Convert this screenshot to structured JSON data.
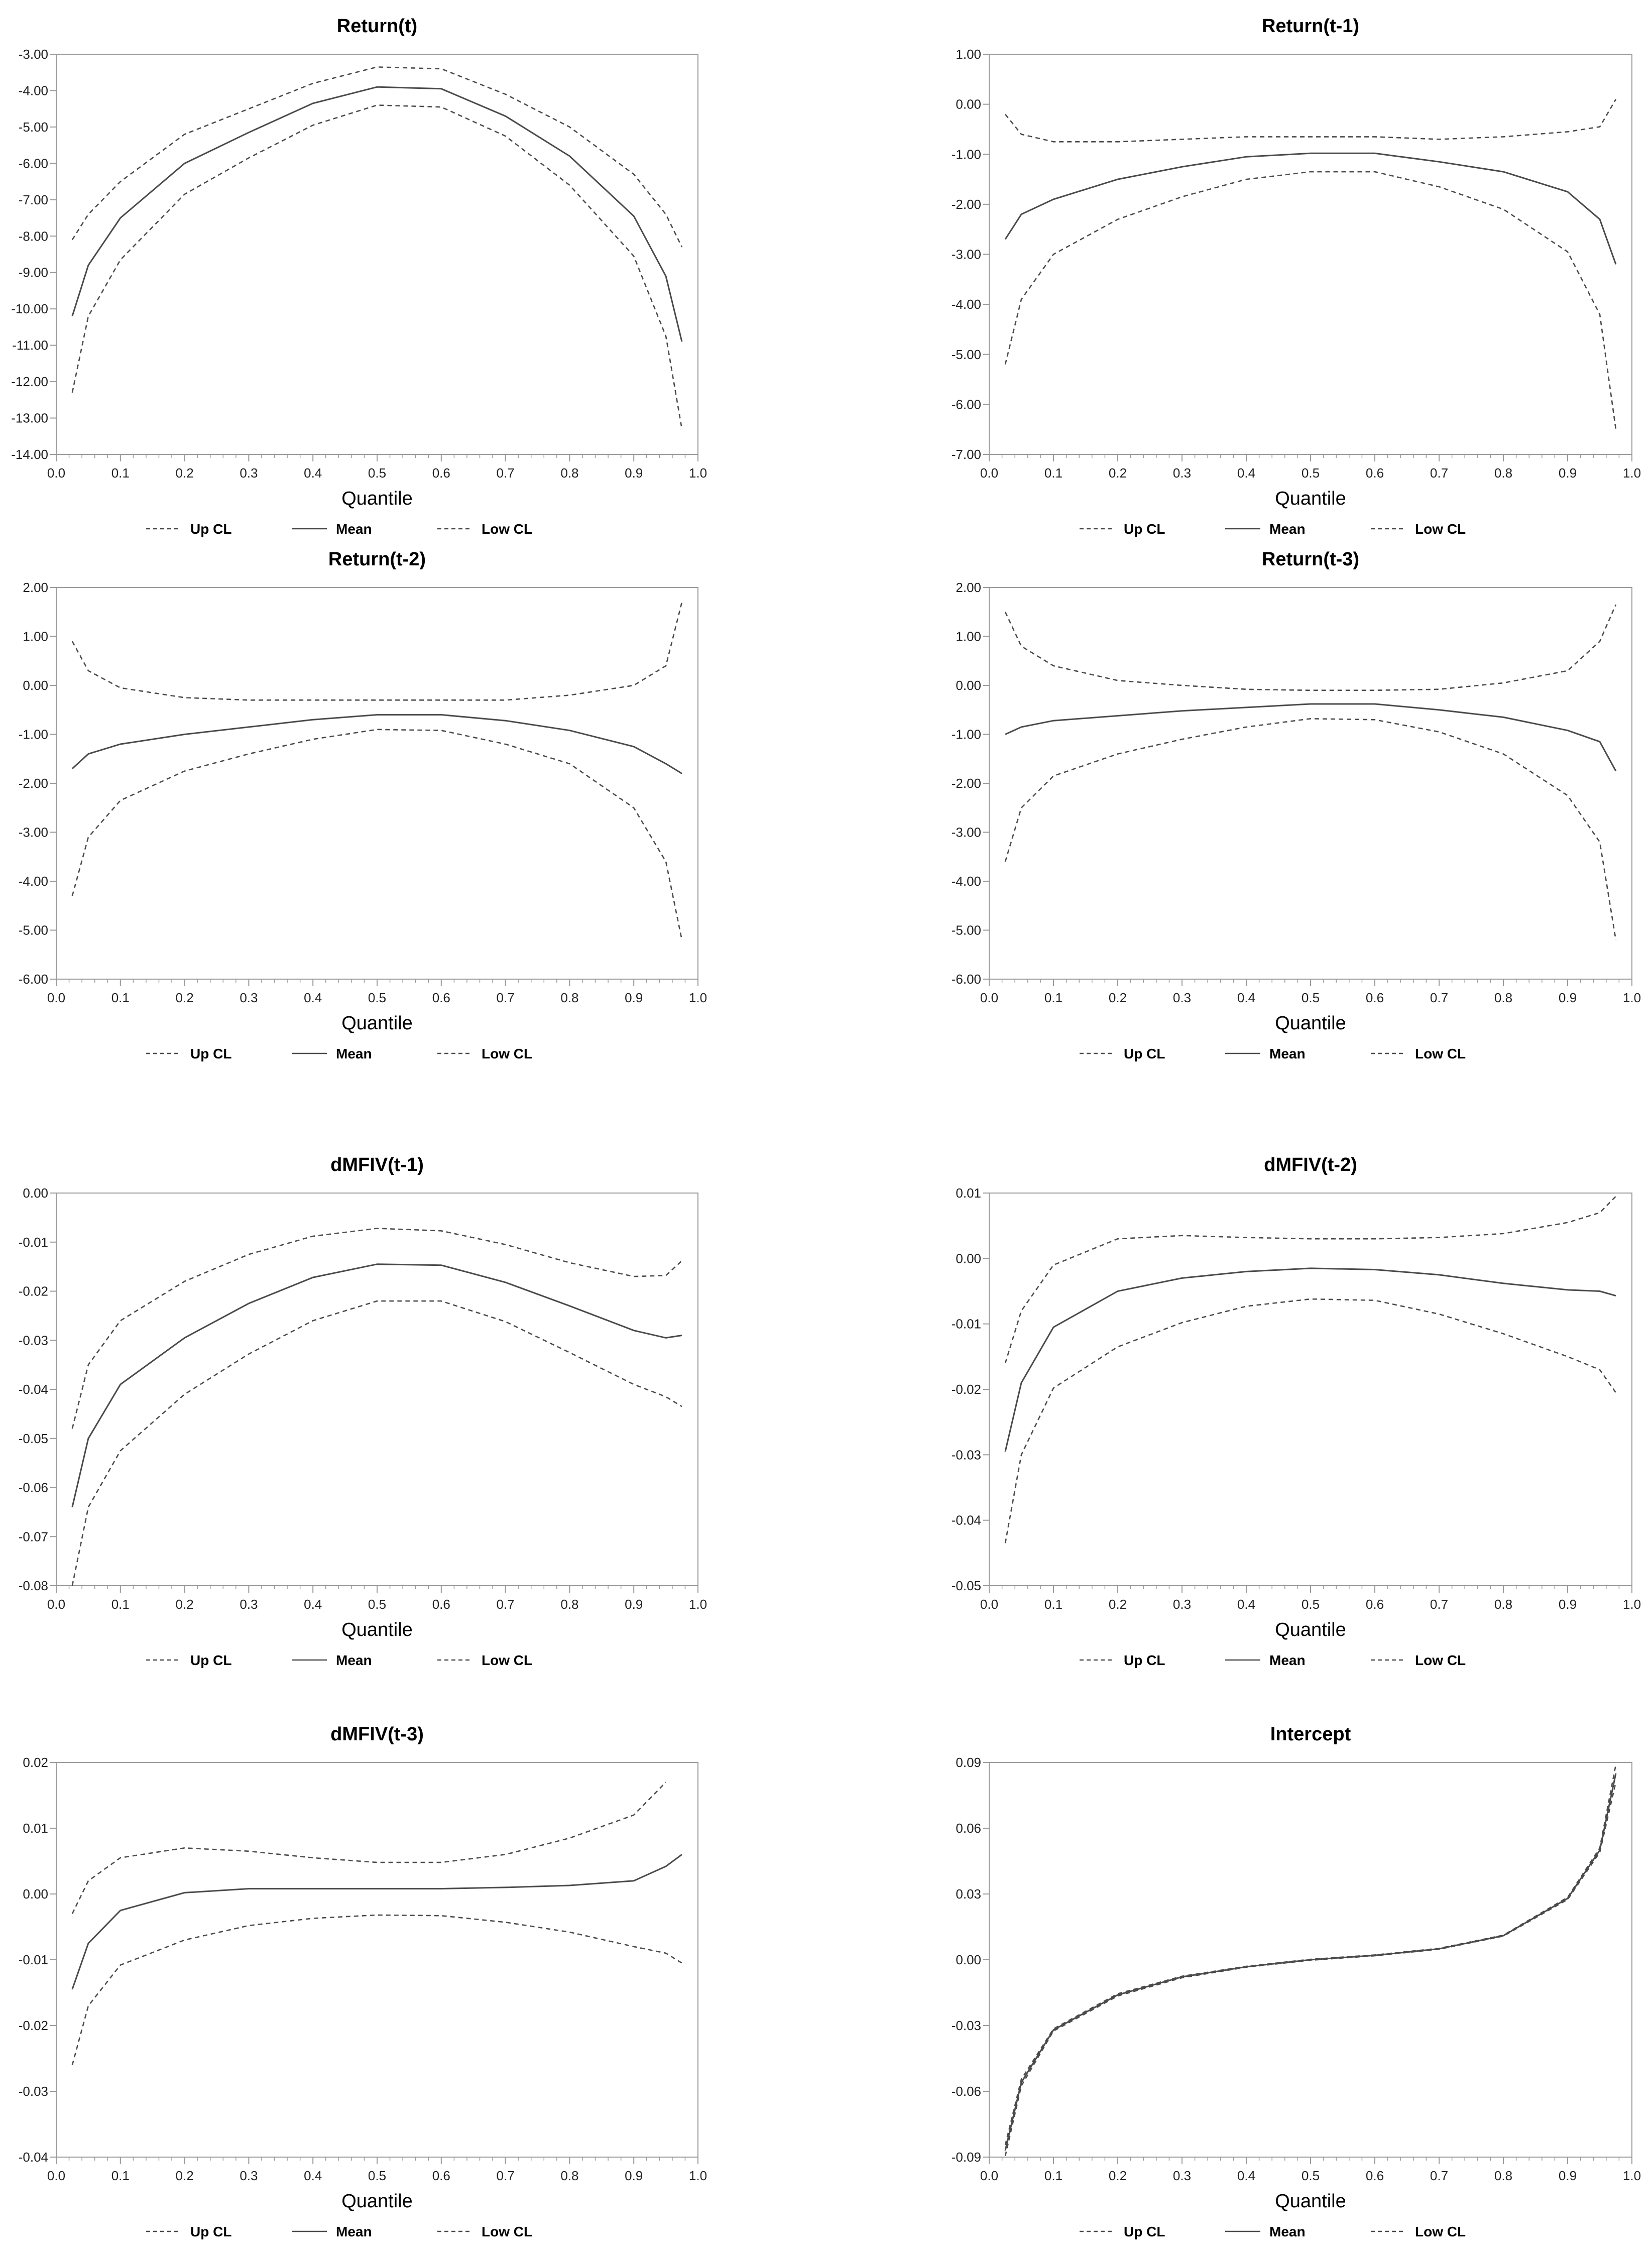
{
  "colors": {
    "line": "#4a4a4a",
    "axis": "#9a9a9a",
    "text": "#000000"
  },
  "legend": [
    "Up CL",
    "Mean",
    "Low CL"
  ],
  "chart_data": [
    {
      "type": "line",
      "title": "Return(t)",
      "xlabel": "Quantile",
      "ylabel": "",
      "xlim": [
        0,
        1
      ],
      "ylim": [
        -14,
        -3
      ],
      "xticks": [
        "0.0",
        "0.1",
        "0.2",
        "0.3",
        "0.4",
        "0.5",
        "0.6",
        "0.7",
        "0.8",
        "0.9",
        "1.0"
      ],
      "yticks": [
        "-3.00",
        "-4.00",
        "-5.00",
        "-6.00",
        "-7.00",
        "-8.00",
        "-9.00",
        "-10.00",
        "-11.00",
        "-12.00",
        "-13.00",
        "-14.00"
      ],
      "x": [
        0.025,
        0.05,
        0.1,
        0.2,
        0.3,
        0.4,
        0.5,
        0.6,
        0.7,
        0.8,
        0.9,
        0.95,
        0.975
      ],
      "series": [
        {
          "name": "Up CL",
          "style": "dashed",
          "values": [
            -8.1,
            -7.4,
            -6.5,
            -5.2,
            -4.5,
            -3.8,
            -3.35,
            -3.4,
            -4.1,
            -5.0,
            -6.3,
            -7.4,
            -8.3
          ]
        },
        {
          "name": "Mean",
          "style": "solid",
          "values": [
            -10.2,
            -8.8,
            -7.5,
            -6.0,
            -5.15,
            -4.35,
            -3.9,
            -3.95,
            -4.7,
            -5.8,
            -7.45,
            -9.1,
            -10.9
          ]
        },
        {
          "name": "Low CL",
          "style": "dashed",
          "values": [
            -12.3,
            -10.2,
            -8.65,
            -6.85,
            -5.85,
            -4.95,
            -4.4,
            -4.45,
            -5.25,
            -6.6,
            -8.55,
            -10.75,
            -13.3
          ]
        }
      ]
    },
    {
      "type": "line",
      "title": "Return(t-1)",
      "xlabel": "Quantile",
      "ylabel": "",
      "xlim": [
        0,
        1
      ],
      "ylim": [
        -7,
        1
      ],
      "xticks": [
        "0.0",
        "0.1",
        "0.2",
        "0.3",
        "0.4",
        "0.5",
        "0.6",
        "0.7",
        "0.8",
        "0.9",
        "1.0"
      ],
      "yticks": [
        "1.00",
        "0.00",
        "-1.00",
        "-2.00",
        "-3.00",
        "-4.00",
        "-5.00",
        "-6.00",
        "-7.00"
      ],
      "x": [
        0.025,
        0.05,
        0.1,
        0.2,
        0.3,
        0.4,
        0.5,
        0.6,
        0.7,
        0.8,
        0.9,
        0.95,
        0.975
      ],
      "series": [
        {
          "name": "Up CL",
          "style": "dashed",
          "values": [
            -0.2,
            -0.6,
            -0.75,
            -0.75,
            -0.7,
            -0.65,
            -0.65,
            -0.65,
            -0.7,
            -0.65,
            -0.55,
            -0.45,
            0.1
          ]
        },
        {
          "name": "Mean",
          "style": "solid",
          "values": [
            -2.7,
            -2.2,
            -1.9,
            -1.5,
            -1.25,
            -1.05,
            -0.98,
            -0.98,
            -1.15,
            -1.35,
            -1.75,
            -2.3,
            -3.2
          ]
        },
        {
          "name": "Low CL",
          "style": "dashed",
          "values": [
            -5.2,
            -3.9,
            -3.0,
            -2.3,
            -1.85,
            -1.5,
            -1.35,
            -1.35,
            -1.65,
            -2.1,
            -2.95,
            -4.2,
            -6.5
          ]
        }
      ]
    },
    {
      "type": "line",
      "title": "Return(t-2)",
      "xlabel": "Quantile",
      "ylabel": "",
      "xlim": [
        0,
        1
      ],
      "ylim": [
        -6,
        2
      ],
      "xticks": [
        "0.0",
        "0.1",
        "0.2",
        "0.3",
        "0.4",
        "0.5",
        "0.6",
        "0.7",
        "0.8",
        "0.9",
        "1.0"
      ],
      "yticks": [
        "2.00",
        "1.00",
        "0.00",
        "-1.00",
        "-2.00",
        "-3.00",
        "-4.00",
        "-5.00",
        "-6.00"
      ],
      "x": [
        0.025,
        0.05,
        0.1,
        0.2,
        0.3,
        0.4,
        0.5,
        0.6,
        0.7,
        0.8,
        0.9,
        0.95,
        0.975
      ],
      "series": [
        {
          "name": "Up CL",
          "style": "dashed",
          "values": [
            0.9,
            0.3,
            -0.05,
            -0.25,
            -0.3,
            -0.3,
            -0.3,
            -0.3,
            -0.3,
            -0.2,
            0.0,
            0.4,
            1.7
          ]
        },
        {
          "name": "Mean",
          "style": "solid",
          "values": [
            -1.7,
            -1.4,
            -1.2,
            -1.0,
            -0.85,
            -0.7,
            -0.6,
            -0.6,
            -0.72,
            -0.92,
            -1.25,
            -1.6,
            -1.8
          ]
        },
        {
          "name": "Low CL",
          "style": "dashed",
          "values": [
            -4.3,
            -3.1,
            -2.35,
            -1.75,
            -1.4,
            -1.1,
            -0.9,
            -0.92,
            -1.2,
            -1.6,
            -2.5,
            -3.6,
            -5.2
          ]
        }
      ]
    },
    {
      "type": "line",
      "title": "Return(t-3)",
      "xlabel": "Quantile",
      "ylabel": "",
      "xlim": [
        0,
        1
      ],
      "ylim": [
        -6,
        2
      ],
      "xticks": [
        "0.0",
        "0.1",
        "0.2",
        "0.3",
        "0.4",
        "0.5",
        "0.6",
        "0.7",
        "0.8",
        "0.9",
        "1.0"
      ],
      "yticks": [
        "2.00",
        "1.00",
        "0.00",
        "-1.00",
        "-2.00",
        "-3.00",
        "-4.00",
        "-5.00",
        "-6.00"
      ],
      "x": [
        0.025,
        0.05,
        0.1,
        0.2,
        0.3,
        0.4,
        0.5,
        0.6,
        0.7,
        0.8,
        0.9,
        0.95,
        0.975
      ],
      "series": [
        {
          "name": "Up CL",
          "style": "dashed",
          "values": [
            1.5,
            0.8,
            0.4,
            0.1,
            0.0,
            -0.08,
            -0.1,
            -0.1,
            -0.08,
            0.05,
            0.3,
            0.9,
            1.65
          ]
        },
        {
          "name": "Mean",
          "style": "solid",
          "values": [
            -1.0,
            -0.85,
            -0.72,
            -0.62,
            -0.52,
            -0.45,
            -0.38,
            -0.38,
            -0.5,
            -0.65,
            -0.92,
            -1.15,
            -1.75
          ]
        },
        {
          "name": "Low CL",
          "style": "dashed",
          "values": [
            -3.6,
            -2.5,
            -1.85,
            -1.4,
            -1.1,
            -0.85,
            -0.68,
            -0.7,
            -0.95,
            -1.4,
            -2.25,
            -3.2,
            -5.2
          ]
        }
      ]
    },
    {
      "type": "line",
      "title": "dMFIV(t-1)",
      "xlabel": "Quantile",
      "ylabel": "",
      "xlim": [
        0,
        1
      ],
      "ylim": [
        -0.08,
        0
      ],
      "xticks": [
        "0.0",
        "0.1",
        "0.2",
        "0.3",
        "0.4",
        "0.5",
        "0.6",
        "0.7",
        "0.8",
        "0.9",
        "1.0"
      ],
      "yticks": [
        "0.00",
        "-0.01",
        "-0.02",
        "-0.03",
        "-0.04",
        "-0.05",
        "-0.06",
        "-0.07",
        "-0.08"
      ],
      "x": [
        0.025,
        0.05,
        0.1,
        0.2,
        0.3,
        0.4,
        0.5,
        0.6,
        0.7,
        0.8,
        0.9,
        0.95,
        0.975
      ],
      "series": [
        {
          "name": "Up CL",
          "style": "dashed",
          "values": [
            -0.048,
            -0.035,
            -0.026,
            -0.018,
            -0.0125,
            -0.0088,
            -0.0072,
            -0.0077,
            -0.0105,
            -0.0142,
            -0.017,
            -0.0168,
            -0.0138
          ]
        },
        {
          "name": "Mean",
          "style": "solid",
          "values": [
            -0.064,
            -0.05,
            -0.039,
            -0.0295,
            -0.0225,
            -0.0172,
            -0.0145,
            -0.0147,
            -0.0182,
            -0.023,
            -0.028,
            -0.0295,
            -0.029
          ]
        },
        {
          "name": "Low CL",
          "style": "dashed",
          "values": [
            -0.08,
            -0.064,
            -0.0525,
            -0.041,
            -0.0328,
            -0.026,
            -0.022,
            -0.022,
            -0.0262,
            -0.0325,
            -0.039,
            -0.0415,
            -0.0435
          ]
        }
      ]
    },
    {
      "type": "line",
      "title": "dMFIV(t-2)",
      "xlabel": "Quantile",
      "ylabel": "",
      "xlim": [
        0,
        1
      ],
      "ylim": [
        -0.05,
        0.01
      ],
      "xticks": [
        "0.0",
        "0.1",
        "0.2",
        "0.3",
        "0.4",
        "0.5",
        "0.6",
        "0.7",
        "0.8",
        "0.9",
        "1.0"
      ],
      "yticks": [
        "0.01",
        "0.00",
        "-0.01",
        "-0.02",
        "-0.03",
        "-0.04",
        "-0.05"
      ],
      "x": [
        0.025,
        0.05,
        0.1,
        0.2,
        0.3,
        0.4,
        0.5,
        0.6,
        0.7,
        0.8,
        0.9,
        0.95,
        0.975
      ],
      "series": [
        {
          "name": "Up CL",
          "style": "dashed",
          "values": [
            -0.016,
            -0.008,
            -0.001,
            0.003,
            0.0035,
            0.0032,
            0.003,
            0.003,
            0.0032,
            0.0038,
            0.0055,
            0.007,
            0.0095
          ]
        },
        {
          "name": "Mean",
          "style": "solid",
          "values": [
            -0.0295,
            -0.019,
            -0.0105,
            -0.005,
            -0.003,
            -0.002,
            -0.0015,
            -0.0017,
            -0.0025,
            -0.0038,
            -0.0048,
            -0.005,
            -0.0057
          ]
        },
        {
          "name": "Low CL",
          "style": "dashed",
          "values": [
            -0.0435,
            -0.03,
            -0.0198,
            -0.0135,
            -0.0098,
            -0.0073,
            -0.0062,
            -0.0064,
            -0.0085,
            -0.0115,
            -0.015,
            -0.017,
            -0.0205
          ]
        }
      ]
    },
    {
      "type": "line",
      "title": "dMFIV(t-3)",
      "xlabel": "Quantile",
      "ylabel": "",
      "xlim": [
        0,
        1
      ],
      "ylim": [
        -0.04,
        0.02
      ],
      "xticks": [
        "0.0",
        "0.1",
        "0.2",
        "0.3",
        "0.4",
        "0.5",
        "0.6",
        "0.7",
        "0.8",
        "0.9",
        "1.0"
      ],
      "yticks": [
        "0.02",
        "0.01",
        "0.00",
        "-0.01",
        "-0.02",
        "-0.03",
        "-0.04"
      ],
      "x": [
        0.025,
        0.05,
        0.1,
        0.2,
        0.3,
        0.4,
        0.5,
        0.6,
        0.7,
        0.8,
        0.9,
        0.95,
        0.975
      ],
      "series": [
        {
          "name": "Up CL",
          "style": "dashed",
          "values": [
            -0.003,
            0.002,
            0.0055,
            0.007,
            0.0065,
            0.0055,
            0.0048,
            0.0048,
            0.006,
            0.0085,
            0.012,
            0.017,
            null
          ]
        },
        {
          "name": "Mean",
          "style": "solid",
          "values": [
            -0.0145,
            -0.0075,
            -0.0025,
            0.0002,
            0.0008,
            0.0008,
            0.0008,
            0.0008,
            0.001,
            0.0013,
            0.002,
            0.0042,
            0.006
          ]
        },
        {
          "name": "Low CL",
          "style": "dashed",
          "values": [
            -0.026,
            -0.017,
            -0.0108,
            -0.007,
            -0.0048,
            -0.0037,
            -0.0032,
            -0.0033,
            -0.0043,
            -0.0058,
            -0.008,
            -0.009,
            -0.0105
          ]
        }
      ]
    },
    {
      "type": "line",
      "title": "Intercept",
      "xlabel": "Quantile",
      "ylabel": "",
      "xlim": [
        0,
        1
      ],
      "ylim": [
        -0.09,
        0.09
      ],
      "xticks": [
        "0.0",
        "0.1",
        "0.2",
        "0.3",
        "0.4",
        "0.5",
        "0.6",
        "0.7",
        "0.8",
        "0.9",
        "1.0"
      ],
      "yticks": [
        "0.09",
        "0.06",
        "0.03",
        "0.00",
        "-0.03",
        "-0.06",
        "-0.09"
      ],
      "x": [
        0.025,
        0.05,
        0.1,
        0.2,
        0.3,
        0.4,
        0.5,
        0.6,
        0.7,
        0.8,
        0.9,
        0.95,
        0.975
      ],
      "series": [
        {
          "name": "Up CL",
          "style": "dashed",
          "values": [
            -0.0845,
            -0.0545,
            -0.0315,
            -0.0155,
            -0.0075,
            -0.003,
            0.0002,
            0.0022,
            0.0052,
            0.0112,
            0.0285,
            0.051,
            0.089
          ]
        },
        {
          "name": "Mean",
          "style": "solid",
          "values": [
            -0.087,
            -0.056,
            -0.032,
            -0.016,
            -0.0078,
            -0.0032,
            0.0,
            0.002,
            0.005,
            0.011,
            0.028,
            0.05,
            0.085
          ]
        },
        {
          "name": "Low CL",
          "style": "dashed",
          "values": [
            -0.0895,
            -0.0575,
            -0.0325,
            -0.0165,
            -0.0082,
            -0.0034,
            -0.0002,
            0.0018,
            0.0048,
            0.0108,
            0.0275,
            0.049,
            0.081
          ]
        }
      ]
    }
  ]
}
